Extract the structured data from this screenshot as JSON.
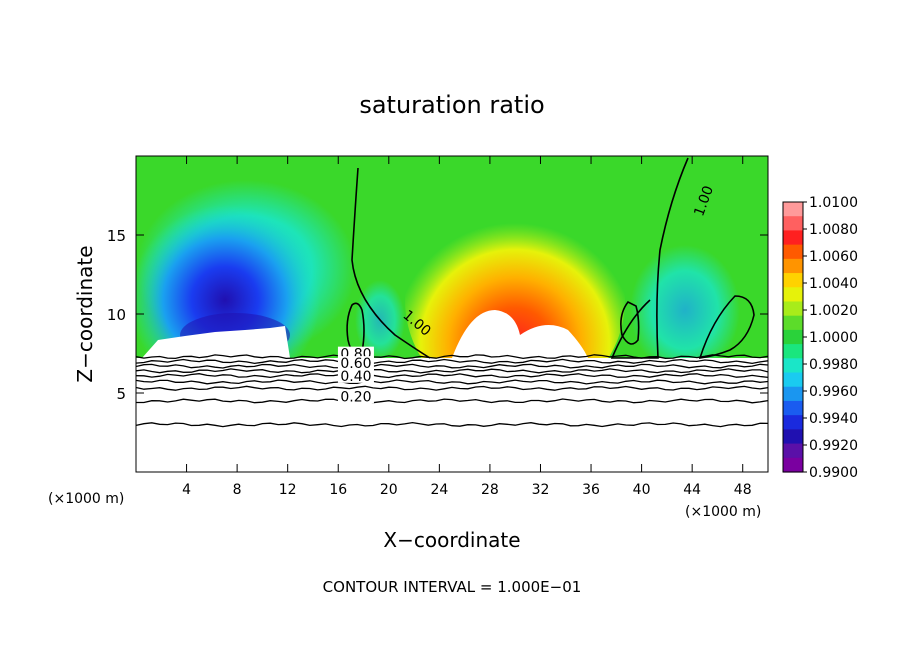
{
  "chart_data": {
    "type": "heatmap",
    "title": "saturation ratio",
    "xlabel": "X−coordinate",
    "ylabel": "Z−coordinate",
    "x_unit_left": "(×1000 m)",
    "x_unit_right": "(×1000 m)",
    "xlim": [
      0,
      50
    ],
    "ylim": [
      0,
      20
    ],
    "x_ticks": [
      "4",
      "8",
      "12",
      "16",
      "20",
      "24",
      "28",
      "32",
      "36",
      "40",
      "44",
      "48"
    ],
    "y_ticks": [
      "5",
      "10",
      "15"
    ],
    "footer": "CONTOUR INTERVAL = 1.000E−01",
    "colorbar": {
      "labels": [
        "1.0100",
        "1.0080",
        "1.0060",
        "1.0040",
        "1.0020",
        "1.0000",
        "0.9980",
        "0.9960",
        "0.9940",
        "0.9920",
        "0.9900"
      ],
      "colors": [
        "#ff9a9a",
        "#ff6060",
        "#ff2020",
        "#ff5a00",
        "#ff9400",
        "#ffd200",
        "#e6f20a",
        "#a8ec1a",
        "#5cdc2a",
        "#2ad23a",
        "#1ae67e",
        "#1ae6c8",
        "#1acbf0",
        "#1a96f0",
        "#1a5cf0",
        "#1a2ade",
        "#2010b0",
        "#5a10a8",
        "#7a00a0"
      ]
    },
    "contour_labels": [
      {
        "text": "1.00",
        "x": 45.1,
        "y": 17.1,
        "angle": -70
      },
      {
        "text": "1.00",
        "x": 22.1,
        "y": 9.3,
        "angle": 40
      },
      {
        "text": "0.80",
        "x": 17.4,
        "y": 7.3,
        "angle": 0
      },
      {
        "text": "0.60",
        "x": 17.4,
        "y": 6.7,
        "angle": 0
      },
      {
        "text": "0.40",
        "x": 17.4,
        "y": 5.9,
        "angle": 0
      },
      {
        "text": "0.20",
        "x": 17.4,
        "y": 4.6,
        "angle": 0
      }
    ],
    "lower_contours": [
      7.3,
      7.0,
      6.7,
      6.4,
      6.1,
      5.7,
      5.3,
      4.5,
      3.0
    ]
  }
}
